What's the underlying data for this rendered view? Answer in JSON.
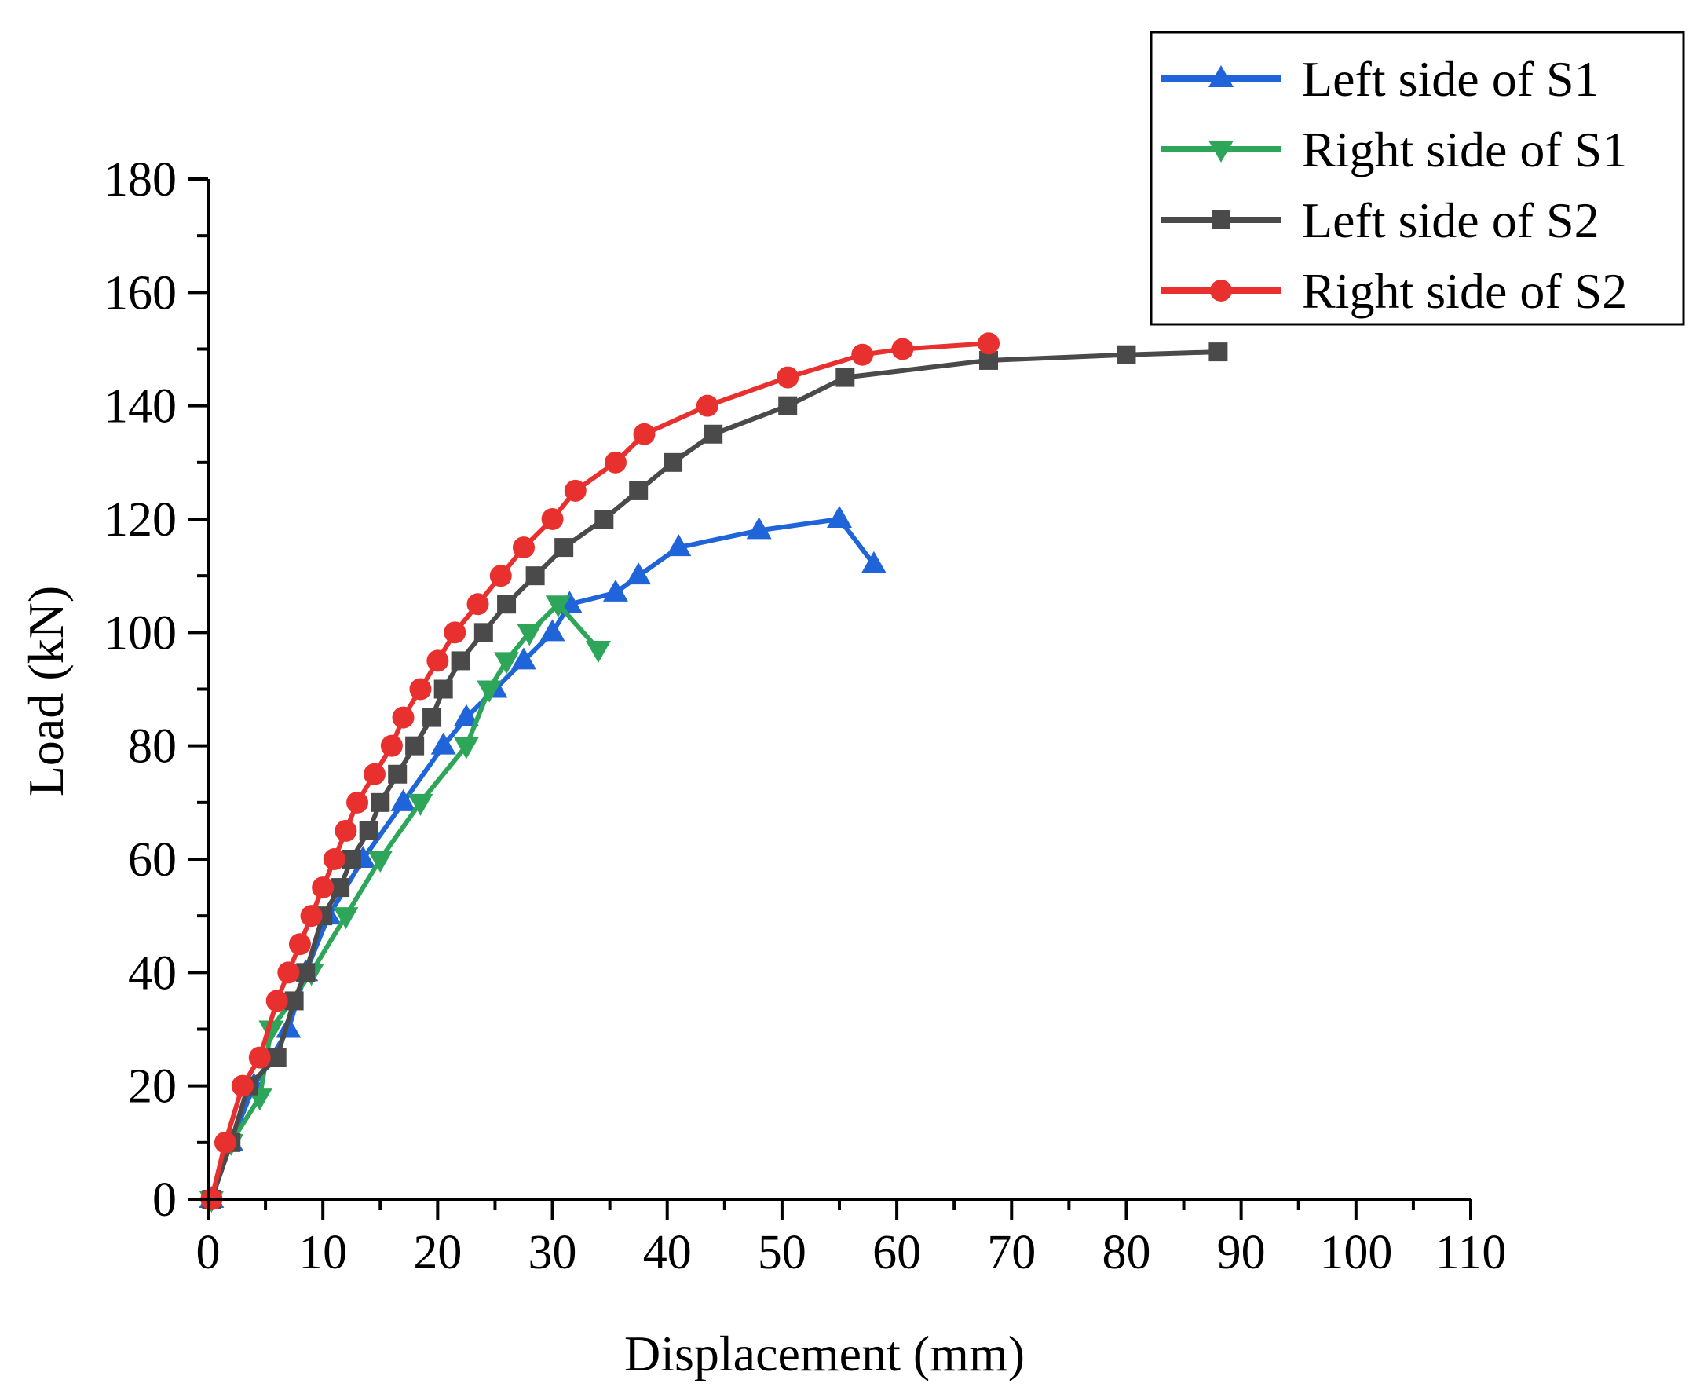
{
  "chart_data": {
    "type": "line",
    "title": "",
    "xlabel": "Displacement  (mm)",
    "ylabel": "Load  (kN)",
    "xlim": [
      0,
      110
    ],
    "ylim": [
      0,
      180
    ],
    "x_major_ticks": [
      0,
      10,
      20,
      30,
      40,
      50,
      60,
      70,
      80,
      90,
      100,
      110
    ],
    "y_major_ticks": [
      0,
      20,
      40,
      60,
      80,
      100,
      120,
      140,
      160,
      180
    ],
    "x_tick_labels": [
      "0",
      "10",
      "20",
      "30",
      "40",
      "50",
      "60",
      "70",
      "80",
      "90",
      "100",
      "110"
    ],
    "y_tick_labels": [
      "0",
      "20",
      "40",
      "60",
      "80",
      "100",
      "120",
      "140",
      "160",
      "180"
    ],
    "grid": false,
    "legend_position": "top-right",
    "series": [
      {
        "name": "Left side of S1",
        "color": "#1f64d8",
        "marker": "triangle-up",
        "points": [
          [
            0.3,
            0
          ],
          [
            2,
            10
          ],
          [
            4,
            20
          ],
          [
            7,
            30
          ],
          [
            8.5,
            40
          ],
          [
            10.5,
            50
          ],
          [
            13.5,
            60
          ],
          [
            17,
            70
          ],
          [
            20.5,
            80
          ],
          [
            22.5,
            85
          ],
          [
            25,
            90
          ],
          [
            27.5,
            95
          ],
          [
            30,
            100
          ],
          [
            31.5,
            105
          ],
          [
            35.5,
            107
          ],
          [
            37.5,
            110
          ],
          [
            41,
            115
          ],
          [
            48,
            118
          ],
          [
            55,
            120
          ],
          [
            58,
            112
          ]
        ]
      },
      {
        "name": "Right side of S1",
        "color": "#2ea65a",
        "marker": "triangle-down",
        "points": [
          [
            0.3,
            0
          ],
          [
            2,
            10
          ],
          [
            4.5,
            18
          ],
          [
            5.5,
            30
          ],
          [
            9,
            40
          ],
          [
            12,
            50
          ],
          [
            15,
            60
          ],
          [
            18.5,
            70
          ],
          [
            22.5,
            80
          ],
          [
            24.5,
            90
          ],
          [
            26,
            95
          ],
          [
            28,
            100
          ],
          [
            30.5,
            105
          ],
          [
            34,
            97
          ]
        ]
      },
      {
        "name": "Left side of S2",
        "color": "#4a4a4a",
        "marker": "square",
        "points": [
          [
            0.3,
            0
          ],
          [
            2,
            10
          ],
          [
            3.5,
            20
          ],
          [
            6,
            25
          ],
          [
            7.5,
            35
          ],
          [
            8.5,
            40
          ],
          [
            10,
            50
          ],
          [
            11.5,
            55
          ],
          [
            12.5,
            60
          ],
          [
            14,
            65
          ],
          [
            15,
            70
          ],
          [
            16.5,
            75
          ],
          [
            18,
            80
          ],
          [
            19.5,
            85
          ],
          [
            20.5,
            90
          ],
          [
            22,
            95
          ],
          [
            24,
            100
          ],
          [
            26,
            105
          ],
          [
            28.5,
            110
          ],
          [
            31,
            115
          ],
          [
            34.5,
            120
          ],
          [
            37.5,
            125
          ],
          [
            40.5,
            130
          ],
          [
            44,
            135
          ],
          [
            50.5,
            140
          ],
          [
            55.5,
            145
          ],
          [
            68,
            148
          ],
          [
            80,
            149
          ],
          [
            88,
            149.5
          ]
        ]
      },
      {
        "name": "Right side of S2",
        "color": "#e8312f",
        "marker": "circle",
        "points": [
          [
            0.3,
            0
          ],
          [
            1.5,
            10
          ],
          [
            3,
            20
          ],
          [
            4.5,
            25
          ],
          [
            6,
            35
          ],
          [
            7,
            40
          ],
          [
            8,
            45
          ],
          [
            9,
            50
          ],
          [
            10,
            55
          ],
          [
            11,
            60
          ],
          [
            12,
            65
          ],
          [
            13,
            70
          ],
          [
            14.5,
            75
          ],
          [
            16,
            80
          ],
          [
            17,
            85
          ],
          [
            18.5,
            90
          ],
          [
            20,
            95
          ],
          [
            21.5,
            100
          ],
          [
            23.5,
            105
          ],
          [
            25.5,
            110
          ],
          [
            27.5,
            115
          ],
          [
            30,
            120
          ],
          [
            32,
            125
          ],
          [
            35.5,
            130
          ],
          [
            38,
            135
          ],
          [
            43.5,
            140
          ],
          [
            50.5,
            145
          ],
          [
            57,
            149
          ],
          [
            60.5,
            150
          ],
          [
            68,
            151
          ]
        ]
      }
    ]
  }
}
